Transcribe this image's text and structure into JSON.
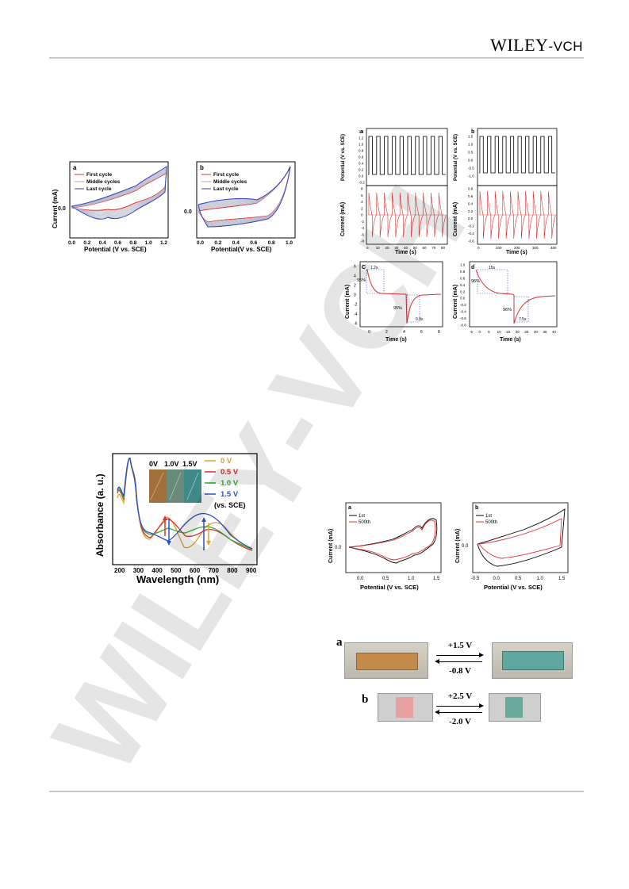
{
  "header": {
    "publisher_main": "WILEY",
    "publisher_suffix": "-VCH"
  },
  "watermark": {
    "text": "WILEY-VCH"
  },
  "fig1": {
    "a": {
      "label": "a",
      "xlabel": "Potential (V vs. SCE)",
      "ylabel": "Current (mA)",
      "xticks": [
        "0.0",
        "0.2",
        "0.4",
        "0.6",
        "0.8",
        "1.0",
        "1.2"
      ],
      "ytick": "0.0",
      "legend": [
        "First cycle",
        "Middle cycles",
        "Last cycle"
      ]
    },
    "b": {
      "label": "b",
      "xlabel": "Potential(V vs. SCE)",
      "ylabel": "Current (mA)",
      "xticks": [
        "0.0",
        "0.2",
        "0.4",
        "0.6",
        "0.8",
        "1.0"
      ],
      "ytick": "0.0",
      "legend": [
        "First cycle",
        "Middle cycles",
        "Last cycle"
      ]
    }
  },
  "fig2": {
    "a_top": {
      "label": "a",
      "ylabel": "Potential (V vs. SCE)",
      "yticks": [
        "1.4",
        "1.2",
        "1.0",
        "0.8",
        "0.6",
        "0.4",
        "0.2",
        "0.0",
        "-0.2"
      ]
    },
    "b_top": {
      "label": "b",
      "ylabel": "Potential (V vs. SCE)",
      "yticks": [
        "1.5",
        "1.0",
        "0.5",
        "0.0",
        "-0.5",
        "-1.0"
      ]
    },
    "a_bot": {
      "ylabel": "Current (mA)",
      "xlabel": "Time (s)",
      "yticks": [
        "8",
        "6",
        "4",
        "2",
        "0",
        "-2",
        "-4",
        "-6",
        "-8"
      ],
      "xticks": [
        "0",
        "10",
        "20",
        "30",
        "40",
        "50",
        "60",
        "70",
        "80"
      ]
    },
    "b_bot": {
      "ylabel": "Current (mA)",
      "xlabel": "Time (s)",
      "yticks": [
        "0.8",
        "0.6",
        "0.4",
        "0.2",
        "0.0",
        "-0.2",
        "-0.4",
        "-0.6"
      ],
      "xticks": [
        "0",
        "100",
        "200",
        "300",
        "400"
      ]
    },
    "c": {
      "label": "C",
      "ylabel": "Current (mA)",
      "xlabel": "Time (s)",
      "yticks": [
        "6",
        "4",
        "2",
        "0",
        "-2",
        "-4",
        "-6"
      ],
      "xticks": [
        "0",
        "2",
        "4",
        "6",
        "8"
      ],
      "ann": [
        "1.2s",
        "95%",
        "95%",
        "0.9s"
      ]
    },
    "d": {
      "label": "d",
      "ylabel": "Current (mA)",
      "xlabel": "Time (s)",
      "yticks": [
        "1.0",
        "0.8",
        "0.6",
        "0.4",
        "0.2",
        "0.0",
        "-0.2",
        "-0.4",
        "-0.6",
        "-0.8"
      ],
      "xticks": [
        "-5",
        "0",
        "5",
        "10",
        "15",
        "20",
        "25",
        "30",
        "35",
        "40"
      ],
      "ann": [
        "15s",
        "96%",
        "96%",
        "7.5s"
      ]
    }
  },
  "fig3": {
    "ylabel": "Absorbance (a. u.)",
    "xlabel": "Wavelength (nm)",
    "xticks": [
      "200",
      "300",
      "400",
      "500",
      "600",
      "700",
      "800",
      "900"
    ],
    "inset": [
      "0V",
      "1.0V",
      "1.5V"
    ],
    "legend": [
      "0 V",
      "0.5 V",
      "1.0 V",
      "1.5 V"
    ],
    "legend_note": "(vs. SCE)",
    "colors": [
      "#e0a030",
      "#e03030",
      "#30b030",
      "#3050c0"
    ]
  },
  "fig4": {
    "a": {
      "label": "a",
      "ylabel": "Current (mA)",
      "ytick": "0.0",
      "xlabel": "Potential (V vs. SCE)",
      "xticks": [
        "0.0",
        "0.5",
        "1.0",
        "1.5"
      ],
      "legend": [
        "1st",
        "500th"
      ]
    },
    "b": {
      "label": "b",
      "ylabel": "Current (mA)",
      "ytick": "0.0",
      "xlabel": "Potential (V vs. SCE)",
      "xticks": [
        "-0.5",
        "0.0",
        "0.5",
        "1.0",
        "1.5"
      ],
      "legend": [
        "1st",
        "500th"
      ]
    }
  },
  "fig5": {
    "a": {
      "label": "a",
      "up": "+1.5 V",
      "down": "-0.8 V"
    },
    "b": {
      "label": "b",
      "up": "+2.5 V",
      "down": "-2.0 V"
    }
  }
}
